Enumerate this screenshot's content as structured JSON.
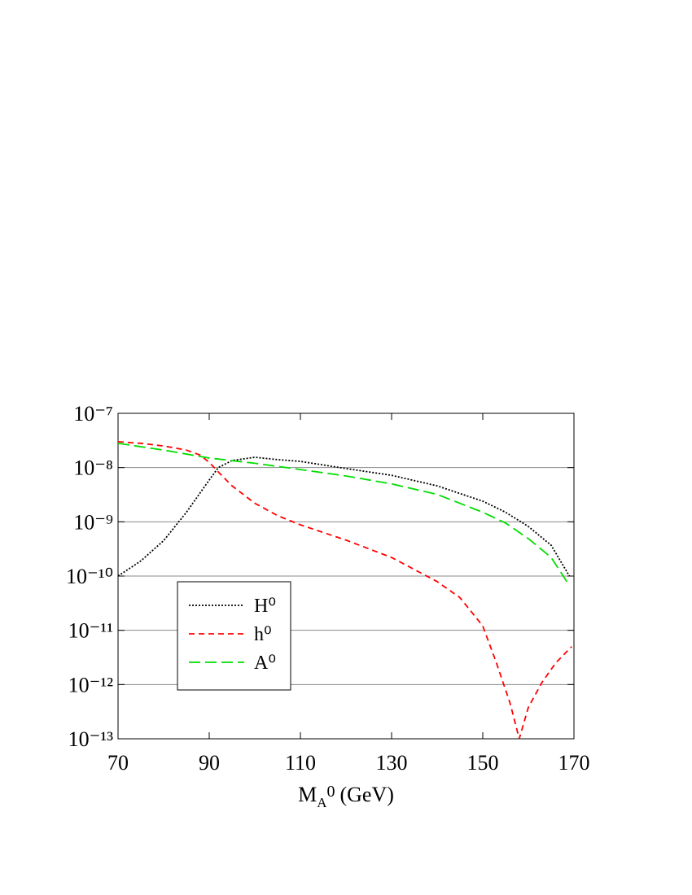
{
  "chart_data": {
    "type": "line",
    "x_label": {
      "main": "M",
      "sub": "A",
      "sup": "0",
      "unit": "(GeV)"
    },
    "xlim": [
      70,
      170
    ],
    "xticks": [
      70,
      90,
      110,
      130,
      150,
      170
    ],
    "ylim": [
      1e-13,
      1e-07
    ],
    "log_y": true,
    "grid": true,
    "legend": "lower left",
    "yticks": [
      {
        "value": 1e-13,
        "label": "10⁻¹³"
      },
      {
        "value": 1e-12,
        "label": "10⁻¹²"
      },
      {
        "value": 1e-11,
        "label": "10⁻¹¹"
      },
      {
        "value": 1e-10,
        "label": "10⁻¹⁰"
      },
      {
        "value": 1e-09,
        "label": "10⁻⁹"
      },
      {
        "value": 1e-08,
        "label": "10⁻⁸"
      },
      {
        "value": 1e-07,
        "label": "10⁻⁷"
      }
    ],
    "series": [
      {
        "name": "H⁰",
        "color": "#000000",
        "dash": "2 2",
        "x": [
          70,
          75,
          80,
          85,
          90,
          92,
          95,
          100,
          105,
          110,
          120,
          130,
          140,
          150,
          155,
          160,
          165,
          169
        ],
        "values": [
          1e-10,
          1.9e-10,
          4.5e-10,
          1.5e-09,
          5.9e-09,
          1e-08,
          1.35e-08,
          1.55e-08,
          1.4e-08,
          1.3e-08,
          9.6e-09,
          7.2e-09,
          4.6e-09,
          2.4e-09,
          1.5e-09,
          8.2e-10,
          3.7e-10,
          1e-10
        ]
      },
      {
        "name": "h⁰",
        "color": "#ff0000",
        "dash": "7 5",
        "x": [
          70,
          75,
          80,
          85,
          88,
          90,
          92,
          95,
          100,
          105,
          110,
          120,
          130,
          140,
          145,
          150,
          153,
          156,
          158,
          160,
          163,
          166,
          169.5
        ],
        "values": [
          3e-08,
          2.8e-08,
          2.5e-08,
          2.1e-08,
          1.7e-08,
          1.25e-08,
          8.3e-09,
          4.6e-09,
          2.2e-09,
          1.3e-09,
          8.8e-10,
          4.6e-10,
          2.2e-10,
          7.9e-11,
          4e-11,
          1.2e-11,
          2.5e-12,
          4.5e-13,
          1e-13,
          3.8e-13,
          1.1e-12,
          2.5e-12,
          5e-12
        ]
      },
      {
        "name": "A⁰",
        "color": "#00dd00",
        "dash": "14 6",
        "x": [
          70,
          80,
          90,
          100,
          110,
          120,
          130,
          140,
          150,
          155,
          160,
          165,
          169
        ],
        "values": [
          2.8e-08,
          2.1e-08,
          1.5e-08,
          1.2e-08,
          9.2e-09,
          7e-09,
          5e-09,
          3.2e-09,
          1.5e-09,
          9.5e-10,
          4.9e-10,
          2.2e-10,
          6.7e-11
        ]
      }
    ]
  }
}
